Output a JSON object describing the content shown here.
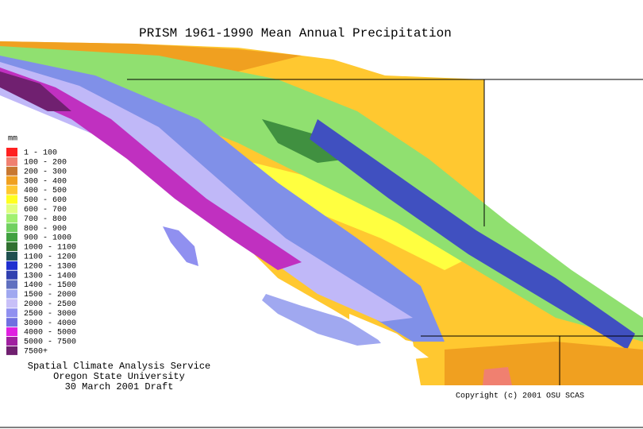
{
  "title": "PRISM 1961-1990 Mean Annual Precipitation",
  "legend": {
    "unit": "mm",
    "items": [
      {
        "label": "1 - 100",
        "color": "#ff2020"
      },
      {
        "label": "100 - 200",
        "color": "#f08070"
      },
      {
        "label": "200 - 300",
        "color": "#c87830"
      },
      {
        "label": "300 - 400",
        "color": "#f0a020"
      },
      {
        "label": "400 - 500",
        "color": "#ffc830"
      },
      {
        "label": "500 - 600",
        "color": "#ffff20"
      },
      {
        "label": "600 - 700",
        "color": "#e0ff80"
      },
      {
        "label": "700 - 800",
        "color": "#a0f070"
      },
      {
        "label": "800 - 900",
        "color": "#70d060"
      },
      {
        "label": "900 - 1000",
        "color": "#40a040"
      },
      {
        "label": "1000 - 1100",
        "color": "#307030"
      },
      {
        "label": "1100 - 1200",
        "color": "#205050"
      },
      {
        "label": "1200 - 1300",
        "color": "#2030d0"
      },
      {
        "label": "1300 - 1400",
        "color": "#3040b0"
      },
      {
        "label": "1400 - 1500",
        "color": "#6070c0"
      },
      {
        "label": "1500 - 2000",
        "color": "#a0a8f0"
      },
      {
        "label": "2000 - 2500",
        "color": "#c8c0f8"
      },
      {
        "label": "2500 - 3000",
        "color": "#9090f0"
      },
      {
        "label": "3000 - 4000",
        "color": "#7070e0"
      },
      {
        "label": "4000 - 5000",
        "color": "#e020e0"
      },
      {
        "label": "5000 - 7500",
        "color": "#a020a0"
      },
      {
        "label": "7500+",
        "color": "#702070"
      }
    ]
  },
  "credits": [
    "Spatial Climate Analysis Service",
    "Oregon State University",
    "30 March 2001 Draft"
  ],
  "copyright": "Copyright (c) 2001 OSU SCAS"
}
